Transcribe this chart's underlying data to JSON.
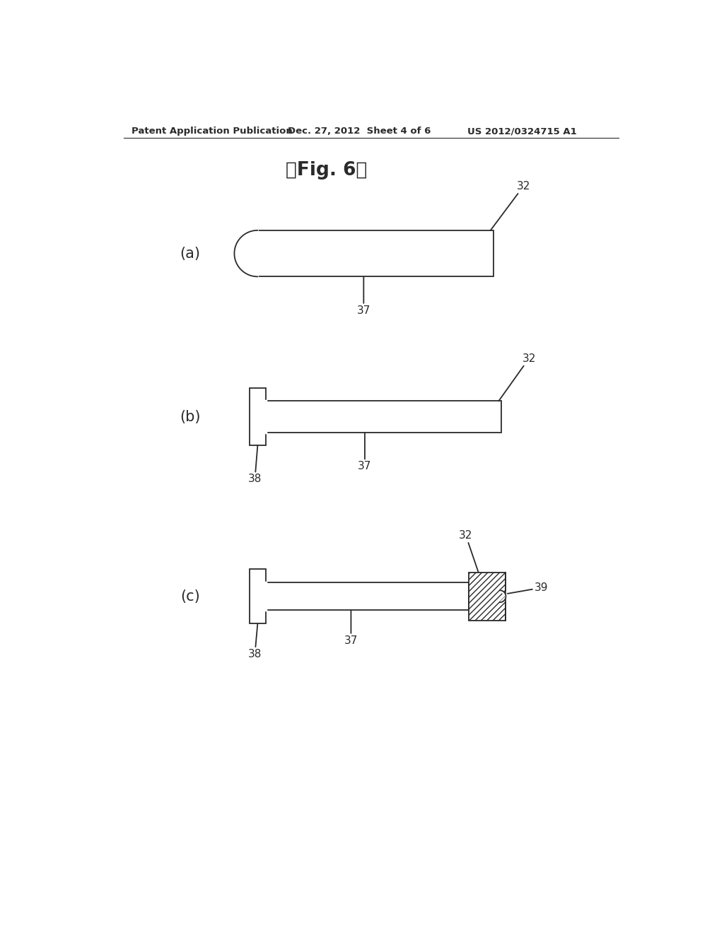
{
  "bg_color": "#ffffff",
  "header_left": "Patent Application Publication",
  "header_mid": "Dec. 27, 2012  Sheet 4 of 6",
  "header_right": "US 2012/0324715 A1",
  "fig_title": "【Fig. 6】",
  "sub_a": "(a)",
  "sub_b": "(b)",
  "sub_c": "(c)",
  "label_32": "32",
  "label_37": "37",
  "label_38": "38",
  "label_39": "39",
  "line_color": "#2a2a2a",
  "line_width": 1.3
}
